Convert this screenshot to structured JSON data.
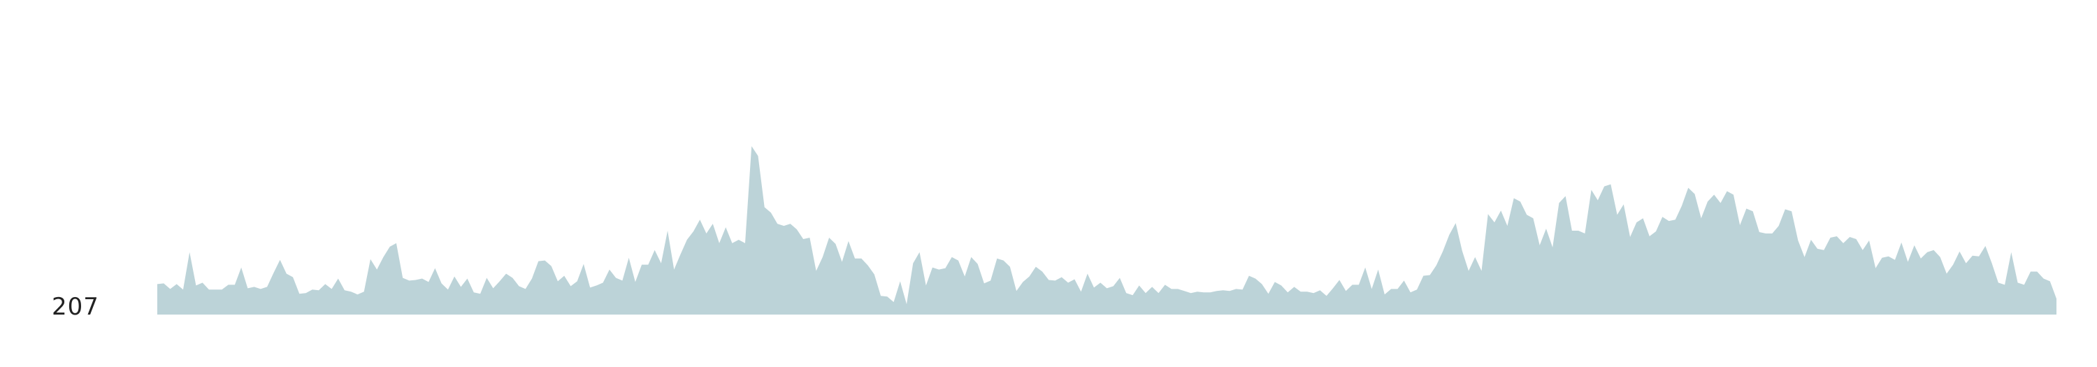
{
  "chart_data": {
    "type": "area",
    "title": "",
    "xlabel": "",
    "ylabel": "",
    "min_label": "207",
    "grid": false,
    "legend": "none",
    "fill_color": "#bcd3d8",
    "ylim": [
      207,
      550
    ],
    "series": [
      {
        "values": [
          251,
          252,
          244,
          251,
          243,
          297,
          249,
          253,
          243,
          243,
          243,
          250,
          250,
          275,
          245,
          247,
          244,
          247,
          267,
          286,
          266,
          261,
          237,
          238,
          243,
          242,
          251,
          244,
          259,
          242,
          240,
          236,
          240,
          287,
          272,
          290,
          305,
          310,
          260,
          256,
          257,
          259,
          254,
          274,
          252,
          243,
          262,
          247,
          259,
          239,
          237,
          260,
          245,
          255,
          266,
          260,
          248,
          244,
          259,
          284,
          285,
          277,
          255,
          263,
          248,
          255,
          280,
          246,
          249,
          253,
          272,
          260,
          256,
          289,
          254,
          279,
          279,
          300,
          281,
          328,
          272,
          294,
          315,
          327,
          344,
          324,
          338,
          310,
          333,
          310,
          315,
          310,
          450,
          436,
          362,
          354,
          338,
          335,
          338,
          330,
          316,
          318,
          270,
          290,
          318,
          309,
          283,
          313,
          288,
          288,
          278,
          265,
          234,
          233,
          225,
          255,
          222,
          281,
          297,
          249,
          275,
          272,
          274,
          290,
          285,
          262,
          290,
          280,
          252,
          256,
          288,
          285,
          276,
          241,
          254,
          262,
          276,
          269,
          257,
          256,
          261,
          253,
          258,
          240,
          266,
          246,
          253,
          245,
          248,
          260,
          238,
          235,
          249,
          238,
          247,
          238,
          250,
          244,
          244,
          241,
          238,
          240,
          239,
          239,
          241,
          242,
          241,
          244,
          243,
          263,
          259,
          251,
          237,
          254,
          249,
          239,
          247,
          240,
          240,
          238,
          242,
          234,
          245,
          257,
          241,
          250,
          250,
          275,
          244,
          272,
          236,
          244,
          244,
          256,
          239,
          243,
          263,
          264,
          278,
          298,
          322,
          339,
          299,
          270,
          290,
          270,
          352,
          340,
          357,
          335,
          375,
          370,
          351,
          346,
          307,
          331,
          304,
          368,
          378,
          328,
          328,
          324,
          387,
          372,
          392,
          395,
          351,
          366,
          319,
          340,
          346,
          320,
          327,
          348,
          342,
          344,
          364,
          390,
          381,
          346,
          370,
          380,
          368,
          385,
          380,
          336,
          360,
          356,
          326,
          324,
          324,
          335,
          359,
          356,
          314,
          290,
          315,
          302,
          300,
          318,
          320,
          310,
          319,
          316,
          300,
          314,
          274,
          289,
          291,
          286,
          311,
          283,
          307,
          288,
          297,
          300,
          290,
          266,
          279,
          298,
          281,
          292,
          291,
          306,
          281,
          253,
          250,
          297,
          253,
          250,
          269,
          269,
          259,
          255,
          230
        ]
      }
    ]
  }
}
